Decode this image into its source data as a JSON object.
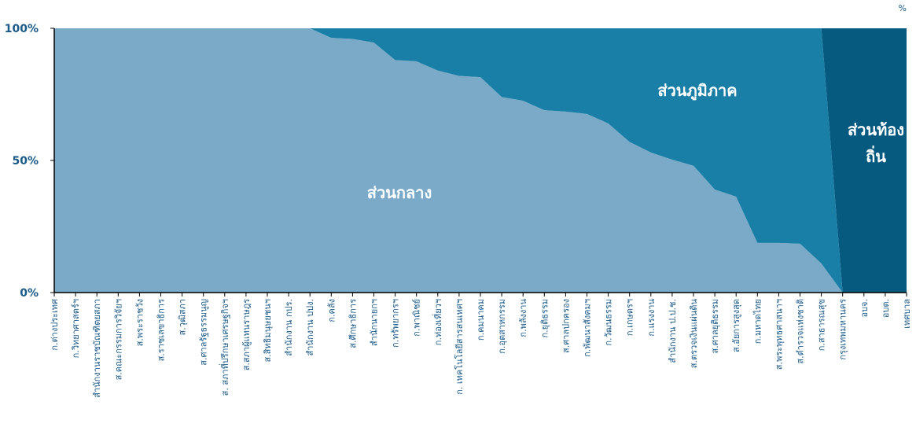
{
  "chart_data": {
    "type": "stacked_area",
    "y_unit": "%",
    "categories": [
      "ก.ต่างประเทศ",
      "ก.วิทยาศาสตร์ฯ",
      "สำนักงานราชบัณฑิตยสภา",
      "ส.คณะกรรมการวิจัยฯ",
      "ส.พระราชวัง",
      "ส.ราชเลขาธิการ",
      "ส.วุฒิสภา",
      "ส.ศาลรัฐธรรมนูญ",
      "ส. สภาที่ปรึกษาเศรษฐกิจฯ",
      "ส.สภาผู้แทนราษฎร",
      "ส.สิทธิมนุษยชนฯ",
      "สำนักงาน กปร.",
      "สำนักงาน ปปง.",
      "ก.คลัง",
      "ส.ศึกษาธิการ",
      "สำนักนายกฯ",
      "ก.ทรัพยากรฯ",
      "ก.พาณิชย์",
      "ก.ท่องเที่ยวฯ",
      "ก. เทคโนโลยีสารสนเทศฯ",
      "ก.คมนาคม",
      "ก.อุตสาหกรรม",
      "ก.พลังงาน",
      "ก.ยุติธรรม",
      "ส.ศาลปกครอง",
      "ก.พัฒนาสังคมฯ",
      "ก.วัฒนธรรม",
      "ก.เกษตรฯ",
      "ก.แรงงาน",
      "สำนักงาน ป.ป.ช.",
      "ส.ตรวจเงินแผ่นดิน",
      "ส.ศาลยุติธรรม",
      "ส.อัยการสูงสุด",
      "ก.มหาดไทย",
      "ส.พระพุทธศาสนาฯ",
      "ส.ตำรวจแห่งชาติ",
      "ก.สาธารณสุข",
      "กรุงเทพมหานคร",
      "อบจ.",
      "อบต.",
      "เทศบาล"
    ],
    "series": [
      {
        "name": "ส่วนกลาง",
        "color": "#7aaac8",
        "values": [
          100,
          100,
          100,
          100,
          100,
          100,
          100,
          100,
          100,
          100,
          100,
          100,
          100,
          96.4,
          96,
          94.6,
          88,
          87.5,
          84,
          82,
          81.5,
          74,
          72.6,
          69,
          68.5,
          67.6,
          64,
          57,
          53,
          50.3,
          48,
          39,
          36.3,
          18.8,
          18.8,
          18.5,
          11,
          0,
          0,
          0,
          0
        ]
      },
      {
        "name": "ส่วนภูมิภาค",
        "color": "#1a7fa6",
        "values": [
          0,
          0,
          0,
          0,
          0,
          0,
          0,
          0,
          0,
          0,
          0,
          0,
          0,
          3.6,
          4,
          5.4,
          12,
          12.5,
          16,
          18,
          18.5,
          26,
          27.4,
          31,
          31.5,
          32.4,
          36,
          43,
          47,
          49.7,
          52,
          61,
          63.7,
          81.2,
          81.2,
          81.5,
          89,
          0,
          0,
          0,
          0
        ]
      },
      {
        "name": "ส่วนท้องถิ่น",
        "color": "#065a80",
        "values": [
          0,
          0,
          0,
          0,
          0,
          0,
          0,
          0,
          0,
          0,
          0,
          0,
          0,
          0,
          0,
          0,
          0,
          0,
          0,
          0,
          0,
          0,
          0,
          0,
          0,
          0,
          0,
          0,
          0,
          0,
          0,
          0,
          0,
          0,
          0,
          0,
          0,
          100,
          100,
          100,
          100
        ]
      }
    ],
    "ylim": [
      0,
      100
    ],
    "yticks": [
      {
        "value": 0,
        "label": "0%"
      },
      {
        "value": 50,
        "label": "50%"
      },
      {
        "value": 100,
        "label": "100%"
      }
    ]
  }
}
